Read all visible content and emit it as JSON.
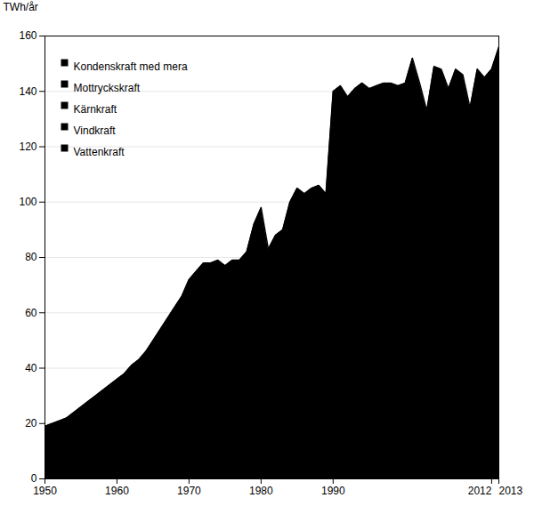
{
  "chart_data": {
    "type": "area",
    "ylabel": "TWh/år",
    "x": [
      1950,
      1951,
      1952,
      1953,
      1954,
      1955,
      1956,
      1957,
      1958,
      1959,
      1960,
      1961,
      1962,
      1963,
      1964,
      1965,
      1966,
      1967,
      1968,
      1969,
      1970,
      1971,
      1972,
      1973,
      1974,
      1975,
      1976,
      1977,
      1978,
      1979,
      1980,
      1981,
      1982,
      1983,
      1984,
      1985,
      1986,
      1987,
      1988,
      1989,
      1990,
      1991,
      1992,
      1993,
      1994,
      1995,
      1996,
      1997,
      1998,
      1999,
      2000,
      2001,
      2002,
      2003,
      2004,
      2005,
      2006,
      2007,
      2008,
      2009,
      2010,
      2011,
      2012,
      2013
    ],
    "values": [
      19,
      20,
      21,
      22,
      24,
      26,
      28,
      30,
      32,
      34,
      36,
      38,
      41,
      43,
      46,
      50,
      54,
      58,
      62,
      66,
      72,
      75,
      78,
      78,
      79,
      77,
      79,
      79,
      82,
      92,
      98,
      83,
      88,
      90,
      100,
      105,
      103,
      105,
      106,
      103,
      140,
      142,
      138,
      141,
      143,
      141,
      142,
      143,
      143,
      142,
      143,
      152,
      143,
      133,
      149,
      148,
      141,
      148,
      146,
      134,
      148,
      145,
      148,
      156
    ],
    "xlim": [
      1950,
      2013
    ],
    "ylim": [
      0,
      160
    ],
    "xticks": [
      1950,
      1960,
      1970,
      1980,
      1990,
      2012,
      2013
    ],
    "yticks": [
      0,
      20,
      40,
      60,
      80,
      100,
      120,
      140,
      160
    ],
    "grid": true,
    "annotations": [
      "Kondenskraft med mera",
      "Mottryckskraft",
      "Kärnkraft",
      "Vindkraft",
      "Vattenkraft"
    ]
  }
}
